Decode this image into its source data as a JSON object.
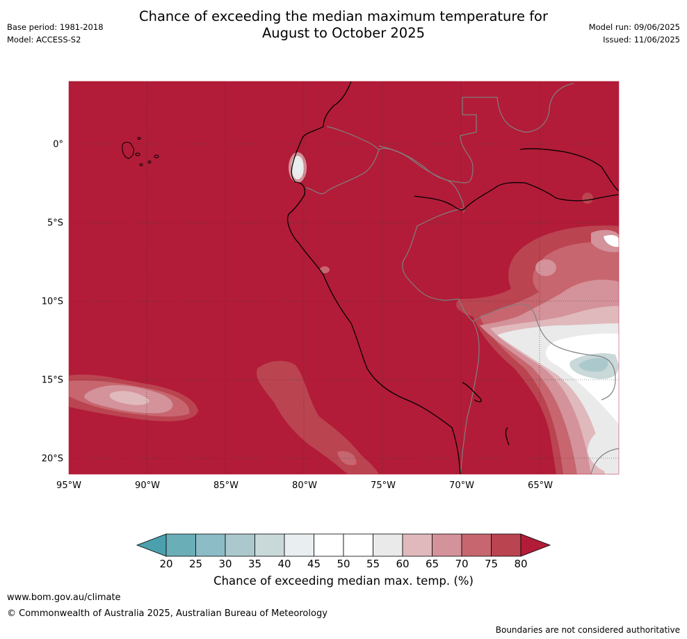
{
  "title": {
    "line1": "Chance of exceeding the median maximum temperature for",
    "line2": "August to October 2025"
  },
  "meta": {
    "base_period": "Base period: 1981-2018",
    "model": "Model: ACCESS-S2",
    "model_run": "Model run: 09/06/2025",
    "issued": "Issued: 11/06/2025"
  },
  "map": {
    "region": "Western South America (Ecuador, Peru, Bolivia, northern Chile)",
    "lon_range": [
      -95,
      -60
    ],
    "lat_range": [
      -21,
      4
    ],
    "lat_ticks": [
      {
        "value": 0,
        "label": "0°"
      },
      {
        "value": -5,
        "label": "5°S"
      },
      {
        "value": -10,
        "label": "10°S"
      },
      {
        "value": -15,
        "label": "15°S"
      },
      {
        "value": -20,
        "label": "20°S"
      }
    ],
    "lon_ticks": [
      {
        "value": -95,
        "label": "95°W"
      },
      {
        "value": -90,
        "label": "90°W"
      },
      {
        "value": -85,
        "label": "85°W"
      },
      {
        "value": -80,
        "label": "80°W"
      },
      {
        "value": -75,
        "label": "75°W"
      },
      {
        "value": -70,
        "label": "70°W"
      },
      {
        "value": -65,
        "label": "65°W"
      }
    ],
    "gridlines": "dotted",
    "dominant_class": "above 80%"
  },
  "colorbar": {
    "title": "Chance of exceeding median max. temp. (%)",
    "ticks": [
      "20",
      "25",
      "30",
      "35",
      "40",
      "45",
      "50",
      "55",
      "60",
      "65",
      "70",
      "75",
      "80"
    ],
    "under_color": "#4aa1ad",
    "over_color": "#b21c38",
    "colors": [
      "#6aaeb8",
      "#8cbcc6",
      "#abc9cd",
      "#c9d8d9",
      "#e9eff1",
      "#ffffff",
      "#ffffff",
      "#eaeaea",
      "#e0b9bd",
      "#d4929a",
      "#c7666f",
      "#bb4451"
    ]
  },
  "footer": {
    "site": "www.bom.gov.au/climate",
    "copyright": "© Commonwealth of Australia 2025, Australian Bureau of Meteorology",
    "disclaimer": "Boundaries are not considered authoritative"
  }
}
